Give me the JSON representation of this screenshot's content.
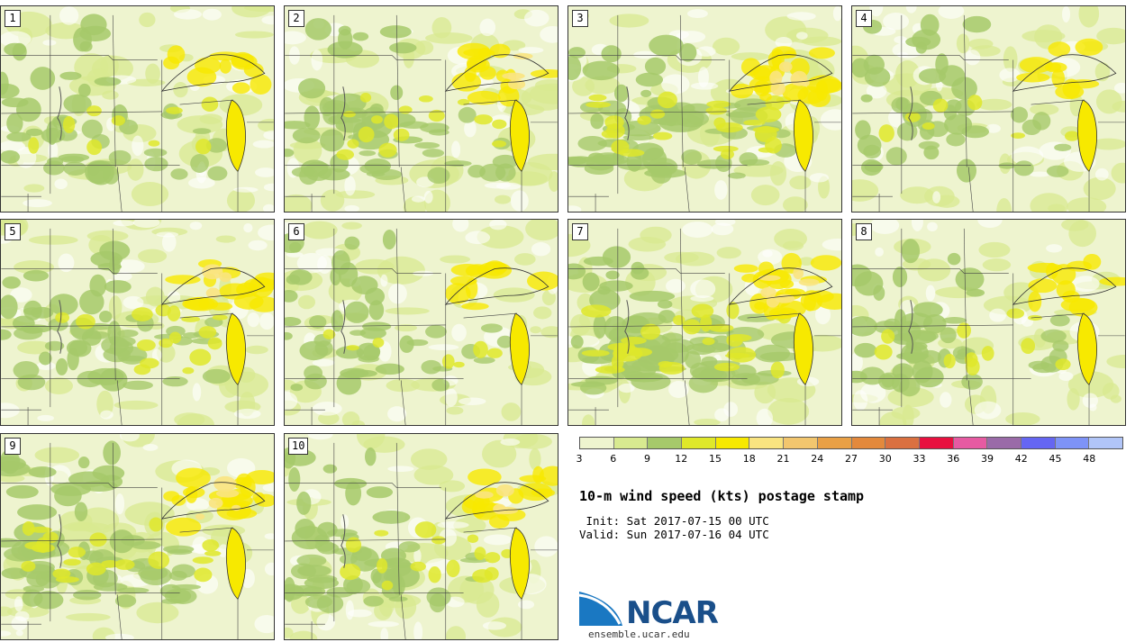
{
  "panels": [
    {
      "label": "1",
      "col": 0,
      "row": 0,
      "intensity": 0.25
    },
    {
      "label": "2",
      "col": 1,
      "row": 0,
      "intensity": 0.45
    },
    {
      "label": "3",
      "col": 2,
      "row": 0,
      "intensity": 0.7
    },
    {
      "label": "4",
      "col": 3,
      "row": 0,
      "intensity": 0.2
    },
    {
      "label": "5",
      "col": 0,
      "row": 1,
      "intensity": 0.45
    },
    {
      "label": "6",
      "col": 1,
      "row": 1,
      "intensity": 0.2
    },
    {
      "label": "7",
      "col": 2,
      "row": 1,
      "intensity": 0.8
    },
    {
      "label": "8",
      "col": 3,
      "row": 1,
      "intensity": 0.3
    },
    {
      "label": "9",
      "col": 0,
      "row": 2,
      "intensity": 0.6
    },
    {
      "label": "10",
      "col": 1,
      "row": 2,
      "intensity": 0.45
    }
  ],
  "colorbar": {
    "colors": [
      "#eef4cf",
      "#d8ea90",
      "#a6c96a",
      "#dfe82a",
      "#f7e900",
      "#f9e480",
      "#f2c66e",
      "#e9a045",
      "#e3893c",
      "#da7040",
      "#e8103f",
      "#e65aa2",
      "#9a6aa8",
      "#6566f2",
      "#7e93f7",
      "#b1c5f8"
    ],
    "ticks": [
      "3",
      "6",
      "9",
      "12",
      "15",
      "18",
      "21",
      "24",
      "27",
      "30",
      "33",
      "36",
      "39",
      "42",
      "45",
      "48"
    ]
  },
  "title": "10-m wind speed (kts) postage stamp",
  "init_line": " Init: Sat 2017-07-15 00 UTC",
  "valid_line": "Valid: Sun 2017-07-16 04 UTC",
  "logo": {
    "text": "NCAR",
    "url": "ensemble.ucar.edu"
  }
}
